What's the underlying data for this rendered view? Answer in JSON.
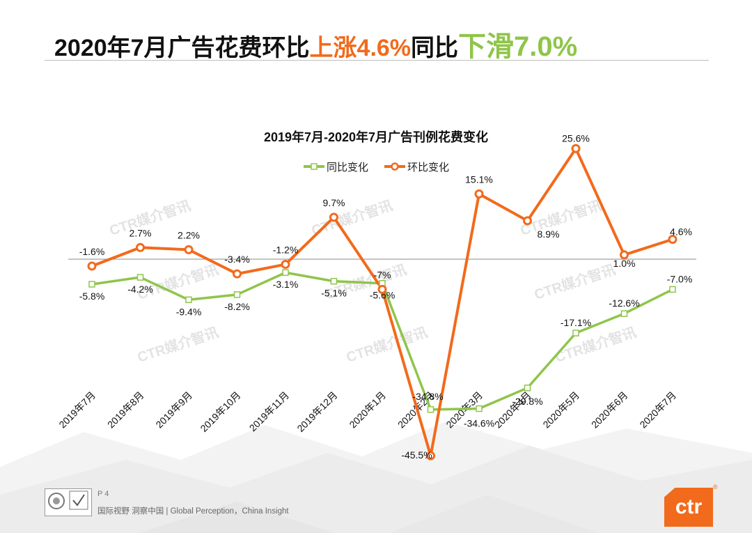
{
  "slide": {
    "title_prefix": "2020年7月广告花费环比",
    "title_up": "上涨4.6%",
    "title_mid": "同比",
    "title_down": "下滑7.0%",
    "page": "P 4",
    "footer": "国际视野  洞察中国 |  Global Perception，China Insight",
    "logo": "ctr"
  },
  "watermark": "CTR媒介智讯",
  "colors": {
    "yoy": "#8fc54a",
    "mom": "#f26a1b",
    "up": "#f26a1b",
    "down": "#8fc54a"
  },
  "chart_data": {
    "type": "line",
    "title": "2019年7月-2020年7月广告刊例花费变化",
    "categories": [
      "2019年7月",
      "2019年8月",
      "2019年9月",
      "2019年10月",
      "2019年11月",
      "2019年12月",
      "2020年1月",
      "2020年2月",
      "2020年3月",
      "2020年4月",
      "2020年5月",
      "2020年6月",
      "2020年7月"
    ],
    "series": [
      {
        "name": "同比变化",
        "color": "#8fc54a",
        "marker": "square",
        "values": [
          -5.8,
          -4.2,
          -9.4,
          -8.2,
          -3.1,
          -5.1,
          -5.6,
          -34.8,
          -34.6,
          -29.8,
          -17.1,
          -12.6,
          -7.0
        ],
        "labels": [
          "-5.8%",
          "-4.2%",
          "-9.4%",
          "-8.2%",
          "-3.1%",
          "-5.1%",
          "-5.6%",
          "-34.8%",
          "-34.6%",
          "-29.8%",
          "-17.1%",
          "-12.6%",
          "-7.0%"
        ]
      },
      {
        "name": "环比变化",
        "color": "#f26a1b",
        "marker": "circle",
        "values": [
          -1.6,
          2.7,
          2.2,
          -3.4,
          -1.2,
          9.7,
          -7.0,
          -45.5,
          15.1,
          8.9,
          25.6,
          1.0,
          4.6
        ],
        "labels": [
          "-1.6%",
          "2.7%",
          "2.2%",
          "-3.4%",
          "-1.2%",
          "9.7%",
          "-7%",
          "-45.5%",
          "15.1%",
          "8.9%",
          "25.6%",
          "1.0%",
          "4.6%"
        ]
      }
    ],
    "ylim": [
      -47,
      27
    ],
    "grid": false,
    "legend": "top-center"
  }
}
